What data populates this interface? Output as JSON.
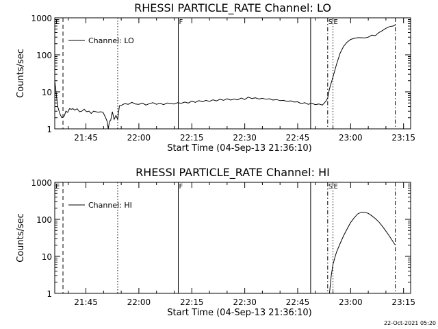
{
  "footer": {
    "timestamp": "22-Oct-2021 05:20"
  },
  "chart_data": [
    {
      "type": "line",
      "title": "RHESSI PARTICLE_RATE Channel: LO",
      "xlabel": "Start Time (04-Sep-13 21:36:10)",
      "ylabel": "Counts/sec",
      "yscale": "log",
      "xlim": [
        "21:36:10",
        "23:17:00"
      ],
      "ylim": [
        1,
        1000
      ],
      "x_ticks": [
        "21:45",
        "22:00",
        "22:15",
        "22:30",
        "22:45",
        "23:00",
        "23:15"
      ],
      "y_ticks": [
        "1",
        "10",
        "100",
        "1000"
      ],
      "legend": {
        "position": "top-left",
        "entries": [
          "Channel: LO"
        ]
      },
      "markers": [
        {
          "label": "E",
          "time": "21:36:10",
          "style": "solid"
        },
        {
          "time": "21:38:30",
          "style": "dashed"
        },
        {
          "time": "21:54:00",
          "style": "dotted"
        },
        {
          "label": "F",
          "time": "22:11:10",
          "style": "solid"
        },
        {
          "time": "22:48:40",
          "style": "solid"
        },
        {
          "label": "S",
          "time": "22:53:30",
          "style": "dashdot"
        },
        {
          "label": "E",
          "time": "22:55:00",
          "style": "dotted"
        },
        {
          "time": "23:12:40",
          "style": "dashdot"
        }
      ],
      "series": [
        {
          "name": "Channel: LO",
          "x": [
            "21:36:10",
            "21:37:00",
            "21:37:40",
            "21:38:10",
            "21:38:50",
            "21:39:20",
            "21:39:50",
            "21:40:20",
            "21:40:50",
            "21:41:20",
            "21:41:50",
            "21:42:30",
            "21:43:10",
            "21:43:50",
            "21:44:30",
            "21:45:10",
            "21:45:50",
            "21:46:30",
            "21:47:10",
            "21:47:50",
            "21:48:30",
            "21:49:10",
            "21:49:50",
            "21:50:30",
            "21:51:00",
            "21:51:20",
            "21:51:40",
            "21:52:00",
            "21:52:30",
            "21:53:00",
            "21:53:30",
            "21:54:00",
            "21:54:30",
            "21:55:00",
            "21:56:00",
            "21:57:00",
            "21:58:00",
            "21:59:00",
            "22:00:00",
            "22:01:00",
            "22:02:00",
            "22:03:00",
            "22:04:00",
            "22:05:00",
            "22:06:00",
            "22:07:00",
            "22:08:00",
            "22:09:00",
            "22:10:00",
            "22:11:00",
            "22:12:00",
            "22:13:00",
            "22:14:00",
            "22:15:00",
            "22:16:00",
            "22:17:00",
            "22:18:00",
            "22:19:00",
            "22:20:00",
            "22:21:00",
            "22:22:00",
            "22:23:00",
            "22:24:00",
            "22:25:00",
            "22:26:00",
            "22:27:00",
            "22:28:00",
            "22:29:00",
            "22:30:00",
            "22:31:00",
            "22:32:00",
            "22:33:00",
            "22:34:00",
            "22:35:00",
            "22:36:00",
            "22:37:00",
            "22:38:00",
            "22:39:00",
            "22:40:00",
            "22:41:00",
            "22:42:00",
            "22:43:00",
            "22:44:00",
            "22:45:00",
            "22:46:00",
            "22:47:00",
            "22:48:00",
            "22:49:00",
            "22:50:00",
            "22:51:00",
            "22:52:00",
            "22:53:00",
            "22:53:30",
            "22:54:00",
            "22:55:00",
            "22:56:00",
            "22:57:00",
            "22:58:00",
            "22:59:00",
            "23:00:00",
            "23:01:00",
            "23:02:00",
            "23:03:00",
            "23:04:00",
            "23:05:00",
            "23:06:00",
            "23:07:00",
            "23:08:00",
            "23:09:00",
            "23:10:00",
            "23:11:00",
            "23:12:00",
            "23:12:40"
          ],
          "values": [
            20,
            4,
            2.5,
            2,
            2.2,
            3,
            2.8,
            3.5,
            3.4,
            3.5,
            3.2,
            3.5,
            2.9,
            3,
            3.4,
            2.9,
            3,
            2.6,
            3,
            2.9,
            2.8,
            2.9,
            2.8,
            2.1,
            1.6,
            0.9,
            1.6,
            1.7,
            2.9,
            1.8,
            2.3,
            1.8,
            4.2,
            4.3,
            4.8,
            4.6,
            5.2,
            4.7,
            4.6,
            5.0,
            4.4,
            4.8,
            5.1,
            4.6,
            4.9,
            4.5,
            5.0,
            4.8,
            4.7,
            5.1,
            4.9,
            5.3,
            5.0,
            5.6,
            5.2,
            5.8,
            5.4,
            5.9,
            5.5,
            6.1,
            5.7,
            6.3,
            5.9,
            6.5,
            6.0,
            6.4,
            6.1,
            6.8,
            6.2,
            7.2,
            6.6,
            6.9,
            6.4,
            6.7,
            6.3,
            6.5,
            6.0,
            6.2,
            5.8,
            5.9,
            5.5,
            5.7,
            5.3,
            5.4,
            4.8,
            5.1,
            4.6,
            4.9,
            4.5,
            4.7,
            4.4,
            5.6,
            6.8,
            12,
            25,
            55,
            110,
            170,
            220,
            260,
            280,
            290,
            290,
            285,
            300,
            340,
            330,
            400,
            450,
            520,
            580,
            600,
            640
          ]
        }
      ]
    },
    {
      "type": "line",
      "title": "RHESSI PARTICLE_RATE Channel: HI",
      "xlabel": "Start Time (04-Sep-13 21:36:10)",
      "ylabel": "Counts/sec",
      "yscale": "log",
      "xlim": [
        "21:36:10",
        "23:17:00"
      ],
      "ylim": [
        1,
        1000
      ],
      "x_ticks": [
        "21:45",
        "22:00",
        "22:15",
        "22:30",
        "22:45",
        "23:00",
        "23:15"
      ],
      "y_ticks": [
        "1",
        "10",
        "100",
        "1000"
      ],
      "legend": {
        "position": "top-left",
        "entries": [
          "Channel: HI"
        ]
      },
      "markers": [
        {
          "label": "E",
          "time": "21:36:10",
          "style": "solid"
        },
        {
          "time": "21:38:30",
          "style": "dashed"
        },
        {
          "time": "21:54:00",
          "style": "dotted"
        },
        {
          "label": "F",
          "time": "22:11:10",
          "style": "solid"
        },
        {
          "time": "22:48:40",
          "style": "solid"
        },
        {
          "label": "S",
          "time": "22:53:30",
          "style": "dashdot"
        },
        {
          "label": "E",
          "time": "22:55:00",
          "style": "dotted"
        },
        {
          "time": "23:12:40",
          "style": "dashdot"
        }
      ],
      "series": [
        {
          "name": "Channel: HI",
          "x": [
            "22:54:00",
            "22:54:30",
            "22:55:00",
            "22:55:30",
            "22:56:00",
            "22:57:00",
            "22:58:00",
            "22:59:00",
            "23:00:00",
            "23:01:00",
            "23:02:00",
            "23:03:00",
            "23:04:00",
            "23:05:00",
            "23:06:00",
            "23:07:00",
            "23:08:00",
            "23:09:00",
            "23:10:00",
            "23:11:00",
            "23:12:00",
            "23:12:30"
          ],
          "values": [
            1,
            3,
            6,
            9,
            13,
            22,
            36,
            55,
            82,
            110,
            140,
            155,
            155,
            145,
            125,
            105,
            85,
            65,
            48,
            35,
            25,
            21
          ]
        }
      ]
    }
  ]
}
